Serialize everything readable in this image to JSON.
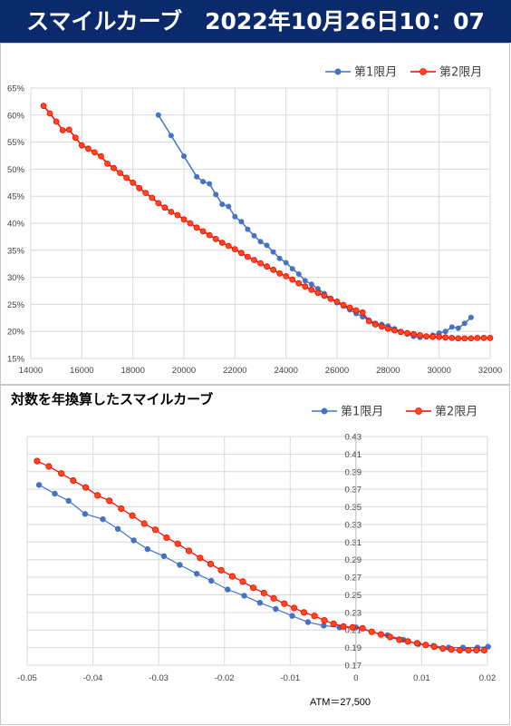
{
  "header": {
    "title": "スマイルカーブ　2022年10月26日10：07"
  },
  "colors": {
    "banner": "#0a2a6b",
    "series1": "#4472c4",
    "series2": "#ff0000",
    "series2_fill": "#ff4a1a",
    "grid": "#d9d9d9"
  },
  "chart_data": [
    {
      "type": "line",
      "title": "",
      "xlabel": "",
      "ylabel": "",
      "xlim": [
        14000,
        32000
      ],
      "ylim": [
        0.15,
        0.65
      ],
      "x_ticks": [
        "14000",
        "16000",
        "18000",
        "20000",
        "22000",
        "24000",
        "26000",
        "28000",
        "30000",
        "32000"
      ],
      "y_ticks": [
        "15%",
        "20%",
        "25%",
        "30%",
        "35%",
        "40%",
        "45%",
        "50%",
        "55%",
        "60%",
        "65%"
      ],
      "grid": "vertical-and-horizontal",
      "legend": "top-right",
      "series": [
        {
          "name": "第1限月",
          "x": [
            19000,
            19500,
            20000,
            20500,
            20750,
            21000,
            21250,
            21500,
            21750,
            22000,
            22250,
            22500,
            22750,
            23000,
            23250,
            23500,
            23750,
            24000,
            24250,
            24500,
            24750,
            25000,
            25250,
            25500,
            25750,
            26000,
            26250,
            26500,
            26750,
            27000,
            27250,
            27500,
            27750,
            28000,
            28250,
            28500,
            28750,
            29000,
            29250,
            29500,
            29750,
            30000,
            30250,
            30500,
            30750,
            31000,
            31250
          ],
          "values": [
            0.6,
            0.562,
            0.524,
            0.486,
            0.477,
            0.473,
            0.453,
            0.435,
            0.431,
            0.412,
            0.403,
            0.389,
            0.377,
            0.366,
            0.359,
            0.347,
            0.335,
            0.327,
            0.316,
            0.306,
            0.294,
            0.287,
            0.279,
            0.27,
            0.261,
            0.253,
            0.247,
            0.24,
            0.233,
            0.227,
            0.221,
            0.215,
            0.213,
            0.21,
            0.205,
            0.2,
            0.195,
            0.191,
            0.189,
            0.19,
            0.193,
            0.197,
            0.2,
            0.208,
            0.206,
            0.215,
            0.226
          ]
        },
        {
          "name": "第2限月",
          "x": [
            14500,
            14750,
            15000,
            15250,
            15500,
            15750,
            16000,
            16250,
            16500,
            16750,
            17000,
            17250,
            17500,
            17750,
            18000,
            18250,
            18500,
            18750,
            19000,
            19250,
            19500,
            19750,
            20000,
            20250,
            20500,
            20750,
            21000,
            21250,
            21500,
            21750,
            22000,
            22250,
            22500,
            22750,
            23000,
            23250,
            23500,
            23750,
            24000,
            24250,
            24500,
            24750,
            25000,
            25250,
            25500,
            25750,
            26000,
            26250,
            26500,
            26750,
            27000,
            27250,
            27500,
            27750,
            28000,
            28250,
            28500,
            28750,
            29000,
            29250,
            29500,
            29750,
            30000,
            30250,
            30500,
            30750,
            31000,
            31250,
            31500,
            31750,
            32000
          ],
          "values": [
            0.617,
            0.603,
            0.588,
            0.572,
            0.573,
            0.558,
            0.544,
            0.538,
            0.531,
            0.524,
            0.51,
            0.502,
            0.493,
            0.484,
            0.475,
            0.465,
            0.456,
            0.447,
            0.437,
            0.429,
            0.421,
            0.415,
            0.407,
            0.4,
            0.392,
            0.385,
            0.378,
            0.371,
            0.364,
            0.358,
            0.352,
            0.345,
            0.338,
            0.332,
            0.326,
            0.32,
            0.314,
            0.307,
            0.302,
            0.296,
            0.289,
            0.283,
            0.277,
            0.271,
            0.266,
            0.26,
            0.255,
            0.249,
            0.244,
            0.239,
            0.235,
            0.219,
            0.213,
            0.209,
            0.205,
            0.202,
            0.199,
            0.197,
            0.195,
            0.193,
            0.191,
            0.19,
            0.19,
            0.189,
            0.188,
            0.187,
            0.187,
            0.187,
            0.188,
            0.188,
            0.188
          ]
        }
      ]
    },
    {
      "type": "line",
      "title": "対数を年換算したスマイルカーブ",
      "xlabel": "",
      "ylabel": "",
      "xlim": [
        -0.05,
        0.02
      ],
      "ylim": [
        0.17,
        0.43
      ],
      "x_ticks": [
        "-0.05",
        "-0.04",
        "-0.03",
        "-0.02",
        "-0.01",
        "0",
        "0.01",
        "0.02"
      ],
      "y_ticks": [
        "0.17",
        "0.19",
        "0.21",
        "0.23",
        "0.25",
        "0.27",
        "0.29",
        "0.31",
        "0.33",
        "0.35",
        "0.37",
        "0.39",
        "0.41",
        "0.43"
      ],
      "grid": "vertical-and-horizontal",
      "legend": "top-right",
      "annotation": "ATM＝27,500",
      "series": [
        {
          "name": "第1限月",
          "x": [
            -0.0482,
            -0.0458,
            -0.0437,
            -0.0412,
            -0.0385,
            -0.0362,
            -0.0338,
            -0.0317,
            -0.0292,
            -0.0268,
            -0.0242,
            -0.022,
            -0.0195,
            -0.017,
            -0.0146,
            -0.0122,
            -0.0097,
            -0.0073,
            -0.0049,
            -0.0025,
            0.0,
            0.0024,
            0.0048,
            0.0072,
            0.0095,
            0.0118,
            0.0141,
            0.0163,
            0.0185,
            0.0201
          ],
          "values": [
            0.375,
            0.365,
            0.357,
            0.342,
            0.336,
            0.325,
            0.312,
            0.302,
            0.294,
            0.284,
            0.274,
            0.266,
            0.256,
            0.249,
            0.241,
            0.234,
            0.226,
            0.219,
            0.215,
            0.213,
            0.213,
            0.208,
            0.204,
            0.199,
            0.194,
            0.192,
            0.19,
            0.19,
            0.19,
            0.191
          ]
        },
        {
          "name": "第2限月",
          "x": [
            -0.0485,
            -0.0467,
            -0.0448,
            -0.043,
            -0.0411,
            -0.0393,
            -0.0375,
            -0.0357,
            -0.034,
            -0.0322,
            -0.0305,
            -0.0288,
            -0.0271,
            -0.0254,
            -0.0237,
            -0.0221,
            -0.0205,
            -0.0188,
            -0.0172,
            -0.0156,
            -0.014,
            -0.0125,
            -0.0109,
            -0.0094,
            -0.0079,
            -0.0063,
            -0.0048,
            -0.0034,
            -0.0019,
            -0.0005,
            0.001,
            0.0024,
            0.0038,
            0.0052,
            0.0066,
            0.0079,
            0.0093,
            0.0106,
            0.0119,
            0.0132,
            0.0145,
            0.0158,
            0.0171,
            0.0183,
            0.0195
          ],
          "values": [
            0.402,
            0.396,
            0.388,
            0.38,
            0.372,
            0.363,
            0.357,
            0.348,
            0.34,
            0.331,
            0.324,
            0.315,
            0.308,
            0.3,
            0.292,
            0.285,
            0.278,
            0.271,
            0.265,
            0.258,
            0.252,
            0.246,
            0.24,
            0.235,
            0.23,
            0.226,
            0.221,
            0.217,
            0.214,
            0.213,
            0.212,
            0.208,
            0.205,
            0.202,
            0.199,
            0.197,
            0.195,
            0.193,
            0.191,
            0.189,
            0.188,
            0.187,
            0.187,
            0.187,
            0.187
          ]
        }
      ]
    }
  ]
}
